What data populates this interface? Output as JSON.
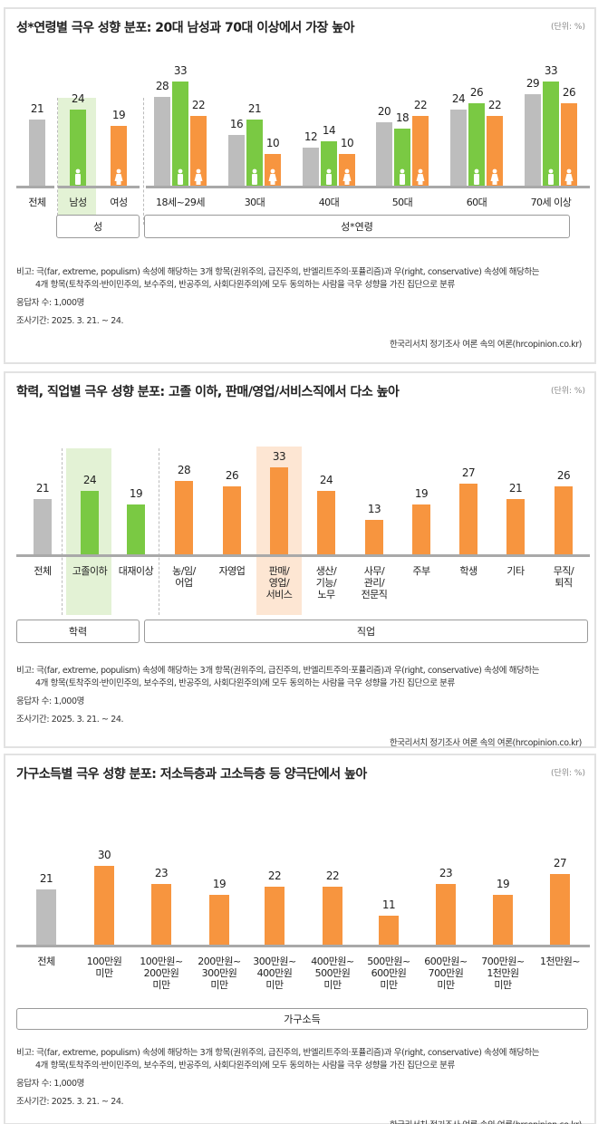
{
  "colors": {
    "total": "#bdbdbd",
    "male": "#7ac943",
    "female": "#f7953f",
    "highlight_green": "#e3f2d5",
    "highlight_orange": "#fde6d3"
  },
  "notes": {
    "line1": "비고:  극(far, extreme, populism) 속성에 해당하는 3개 항목(권위주의, 급진주의, 반엘리트주의·포퓰리즘)과 우(right, conservative) 속성에 해당하는",
    "line2": "4개 항목(토착주의·반이민주의, 보수주의, 반공주의, 사회다윈주의)에 모두 동의하는 사람을 극우 성향을 가진 집단으로 분류",
    "respondents": "응답자 수: 1,000명",
    "period": "조사기간: 2025. 3. 21. ~ 24.",
    "source": "한국리서치 정기조사 여론 속의 여론(hrcopinion.co.kr)"
  },
  "chart_data": [
    {
      "type": "bar",
      "title": "성*연령별 극우 성향 분포: 20대 남성과 70대 이상에서 가장 높아",
      "unit": "(단위: %)",
      "categories": [
        "전체",
        "남성",
        "여성",
        "18세~29세",
        "30대",
        "40대",
        "50대",
        "60대",
        "70세 이상"
      ],
      "bars": [
        {
          "values": [
            21
          ],
          "kinds": [
            "total"
          ]
        },
        {
          "values": [
            24
          ],
          "kinds": [
            "male"
          ]
        },
        {
          "values": [
            19
          ],
          "kinds": [
            "female"
          ]
        },
        {
          "values": [
            28,
            33,
            22
          ],
          "kinds": [
            "total",
            "male",
            "female"
          ]
        },
        {
          "values": [
            16,
            21,
            10
          ],
          "kinds": [
            "total",
            "male",
            "female"
          ]
        },
        {
          "values": [
            12,
            14,
            10
          ],
          "kinds": [
            "total",
            "male",
            "female"
          ]
        },
        {
          "values": [
            20,
            18,
            22
          ],
          "kinds": [
            "total",
            "male",
            "female"
          ]
        },
        {
          "values": [
            24,
            26,
            22
          ],
          "kinds": [
            "total",
            "male",
            "female"
          ]
        },
        {
          "values": [
            29,
            33,
            26
          ],
          "kinds": [
            "total",
            "male",
            "female"
          ]
        }
      ],
      "groups": [
        "성",
        "성*연령"
      ],
      "highlight": "남성"
    },
    {
      "type": "bar",
      "title": "학력, 직업별 극우 성향 분포: 고졸 이하, 판매/영업/서비스직에서 다소 높아",
      "unit": "(단위: %)",
      "categories": [
        "전체",
        "고졸이하",
        "대재이상",
        "농/임/\n어업",
        "자영업",
        "판매/\n영업/\n서비스",
        "생산/\n기능/\n노무",
        "사무/\n관리/\n전문직",
        "주부",
        "학생",
        "기타",
        "무직/\n퇴직"
      ],
      "values": [
        21,
        24,
        19,
        28,
        26,
        33,
        24,
        13,
        19,
        27,
        21,
        26
      ],
      "kinds": [
        "total",
        "male",
        "male",
        "female",
        "female",
        "female",
        "female",
        "female",
        "female",
        "female",
        "female",
        "female"
      ],
      "groups": [
        "학력",
        "직업"
      ],
      "highlights": [
        "고졸이하",
        "판매/영업/서비스"
      ]
    },
    {
      "type": "bar",
      "title": "가구소득별 극우 성향 분포: 저소득층과 고소득층 등 양극단에서 높아",
      "unit": "(단위: %)",
      "categories": [
        "전체",
        "100만원\n미만",
        "100만원~\n200만원\n미만",
        "200만원~\n300만원\n미만",
        "300만원~\n400만원\n미만",
        "400만원~\n500만원\n미만",
        "500만원~\n600만원\n미만",
        "600만원~\n700만원\n미만",
        "700만원~\n1천만원\n미만",
        "1천만원~"
      ],
      "values": [
        21,
        30,
        23,
        19,
        22,
        22,
        11,
        23,
        19,
        27
      ],
      "kinds": [
        "total",
        "female",
        "female",
        "female",
        "female",
        "female",
        "female",
        "female",
        "female",
        "female"
      ],
      "groups": [
        "가구소득"
      ]
    }
  ]
}
